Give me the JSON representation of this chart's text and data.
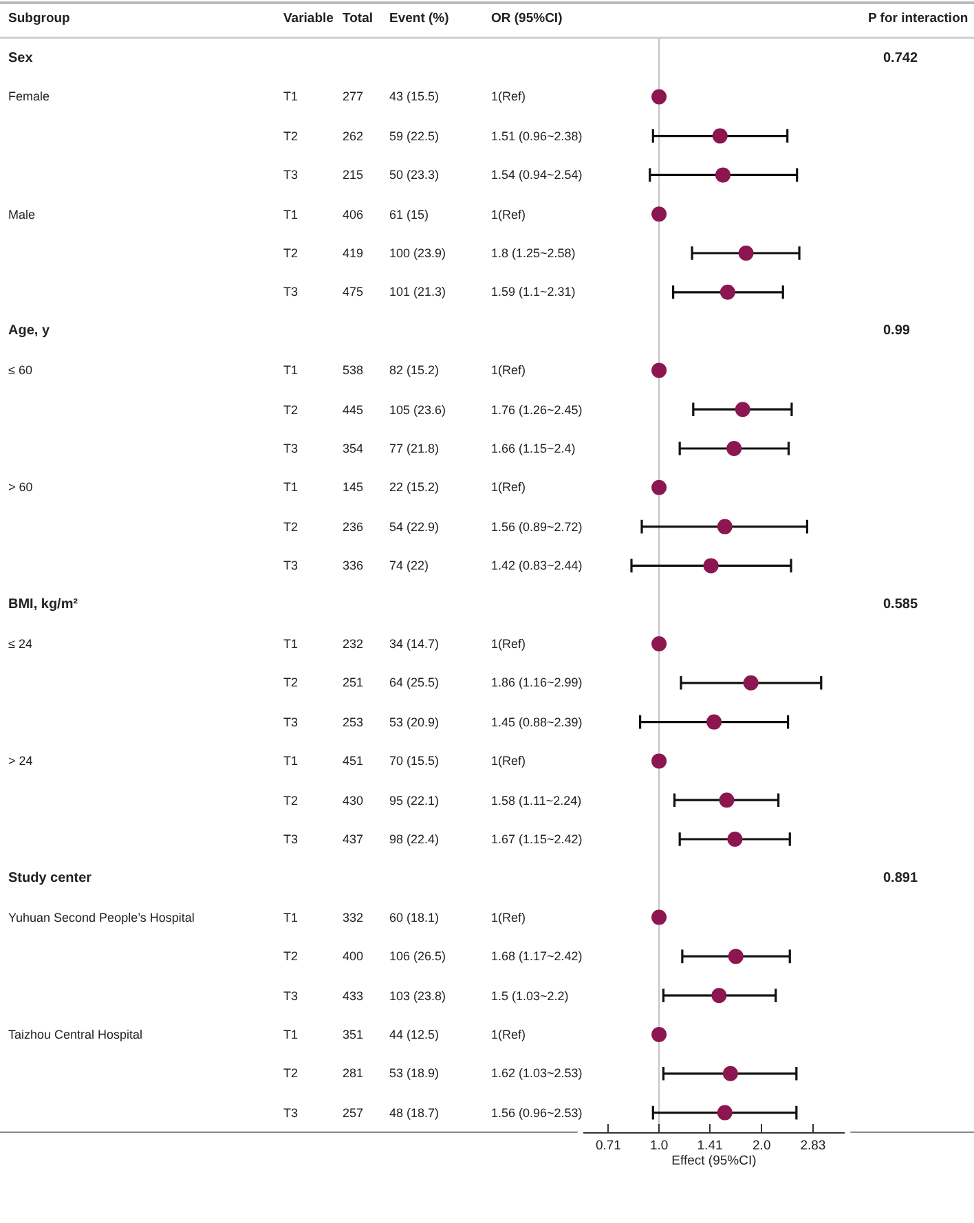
{
  "chart_data": [
    {
      "type": "other",
      "title": "Subgroup",
      "categories": [
        "Sex",
        "Female",
        null,
        null,
        "Male",
        null,
        null,
        "Age, y",
        "≤ 60",
        null,
        null,
        "> 60",
        null,
        null,
        "BMI, kg/m²",
        "≤ 24",
        null,
        null,
        "> 24",
        null,
        null,
        "Study center",
        "Yuhuan Second People’s Hospital",
        null,
        null,
        "Taizhou Central Hospital",
        null,
        null
      ]
    },
    {
      "type": "other",
      "title": "Variable",
      "categories": [
        null,
        "T1",
        "T2",
        "T3",
        "T1",
        "T2",
        "T3",
        null,
        "T1",
        "T2",
        "T3",
        "T1",
        "T2",
        "T3",
        null,
        "T1",
        "T2",
        "T3",
        "T1",
        "T2",
        "T3",
        null,
        "T1",
        "T2",
        "T3",
        "T1",
        "T2",
        "T3"
      ]
    },
    {
      "type": "other",
      "title": "Total",
      "categories": [
        null,
        "277",
        "262",
        "215",
        "406",
        "419",
        "475",
        null,
        "538",
        "445",
        "354",
        "145",
        "236",
        "336",
        null,
        "232",
        "251",
        "253",
        "451",
        "430",
        "437",
        null,
        "332",
        "400",
        "433",
        "351",
        "281",
        "257"
      ]
    },
    {
      "type": "other",
      "title": "Event (%)",
      "categories": [
        null,
        "43 (15.5)",
        "59 (22.5)",
        "50 (23.3)",
        "61 (15)",
        "100 (23.9)",
        "101 (21.3)",
        null,
        "82 (15.2)",
        "105 (23.6)",
        "77 (21.8)",
        "22 (15.2)",
        "54 (22.9)",
        "74 (22)",
        null,
        "34 (14.7)",
        "64 (25.5)",
        "53 (20.9)",
        "70 (15.5)",
        "95 (22.1)",
        "98 (22.4)",
        null,
        "60 (18.1)",
        "106 (26.5)",
        "103 (23.8)",
        "44 (12.5)",
        "53 (18.9)",
        "48 (18.7)"
      ]
    },
    {
      "type": "other",
      "title": "OR (95%CI)",
      "categories": [
        null,
        "1(Ref)",
        "1.51 (0.96~2.38)",
        "1.54 (0.94~2.54)",
        "1(Ref)",
        "1.8 (1.25~2.58)",
        "1.59 (1.1~2.31)",
        null,
        "1(Ref)",
        "1.76 (1.26~2.45)",
        "1.66 (1.15~2.4)",
        "1(Ref)",
        "1.56 (0.89~2.72)",
        "1.42 (0.83~2.44)",
        null,
        "1(Ref)",
        "1.86 (1.16~2.99)",
        "1.45 (0.88~2.39)",
        "1(Ref)",
        "1.58 (1.11~2.24)",
        "1.67 (1.15~2.42)",
        null,
        "1(Ref)",
        "1.68 (1.17~2.42)",
        "1.5 (1.03~2.2)",
        "1(Ref)",
        "1.62 (1.03~2.53)",
        "1.56 (0.96~2.53)"
      ]
    },
    {
      "type": "scatter",
      "orientation": "horizontal",
      "categories": [
        null,
        null,
        null,
        null,
        null,
        null,
        null,
        null,
        null,
        null,
        null,
        null,
        null,
        null,
        null,
        null,
        null,
        null,
        null,
        null,
        null,
        null,
        null,
        null,
        null,
        null,
        null,
        null
      ],
      "values": [
        null,
        1,
        1.51,
        1.54,
        1,
        1.8,
        1.59,
        null,
        1,
        1.76,
        1.66,
        1,
        1.56,
        1.42,
        null,
        1,
        1.86,
        1.45,
        1,
        1.58,
        1.67,
        null,
        1,
        1.68,
        1.5,
        1,
        1.62,
        1.56
      ],
      "errors": [
        null,
        null,
        [
          0.96,
          2.38
        ],
        [
          0.94,
          2.54
        ],
        null,
        [
          1.25,
          2.58
        ],
        [
          1.1,
          2.31
        ],
        null,
        null,
        [
          1.26,
          2.45
        ],
        [
          1.15,
          2.4
        ],
        null,
        [
          0.89,
          2.72
        ],
        [
          0.83,
          2.44
        ],
        null,
        null,
        [
          1.16,
          2.99
        ],
        [
          0.88,
          2.39
        ],
        null,
        [
          1.11,
          2.24
        ],
        [
          1.15,
          2.42
        ],
        null,
        null,
        [
          1.17,
          2.42
        ],
        [
          1.03,
          2.2
        ],
        null,
        [
          1.03,
          2.53
        ],
        [
          0.96,
          2.53
        ]
      ],
      "color": "#8b1650",
      "marker": "circle",
      "log": "x",
      "xlim": [
        0.6,
        3.5
      ],
      "xticks": [
        0.71,
        {
          "value": 1,
          "label": "1.0"
        },
        1.41,
        {
          "value": 2,
          "label": "2.0"
        },
        2.83
      ],
      "xlabel": "Effect (95%CI)",
      "ref_lines": [
        {
          "axis": "x",
          "value": 1,
          "color": "#c8c8c8"
        }
      ],
      "tick_labels": "x",
      "grid": false
    },
    {
      "type": "other",
      "title": "P for interaction",
      "categories": [
        "0.742",
        null,
        null,
        null,
        null,
        null,
        null,
        "0.99",
        null,
        null,
        null,
        null,
        null,
        null,
        "0.585",
        null,
        null,
        null,
        null,
        null,
        null,
        "0.891",
        null,
        null,
        null,
        null,
        null,
        null
      ]
    }
  ]
}
